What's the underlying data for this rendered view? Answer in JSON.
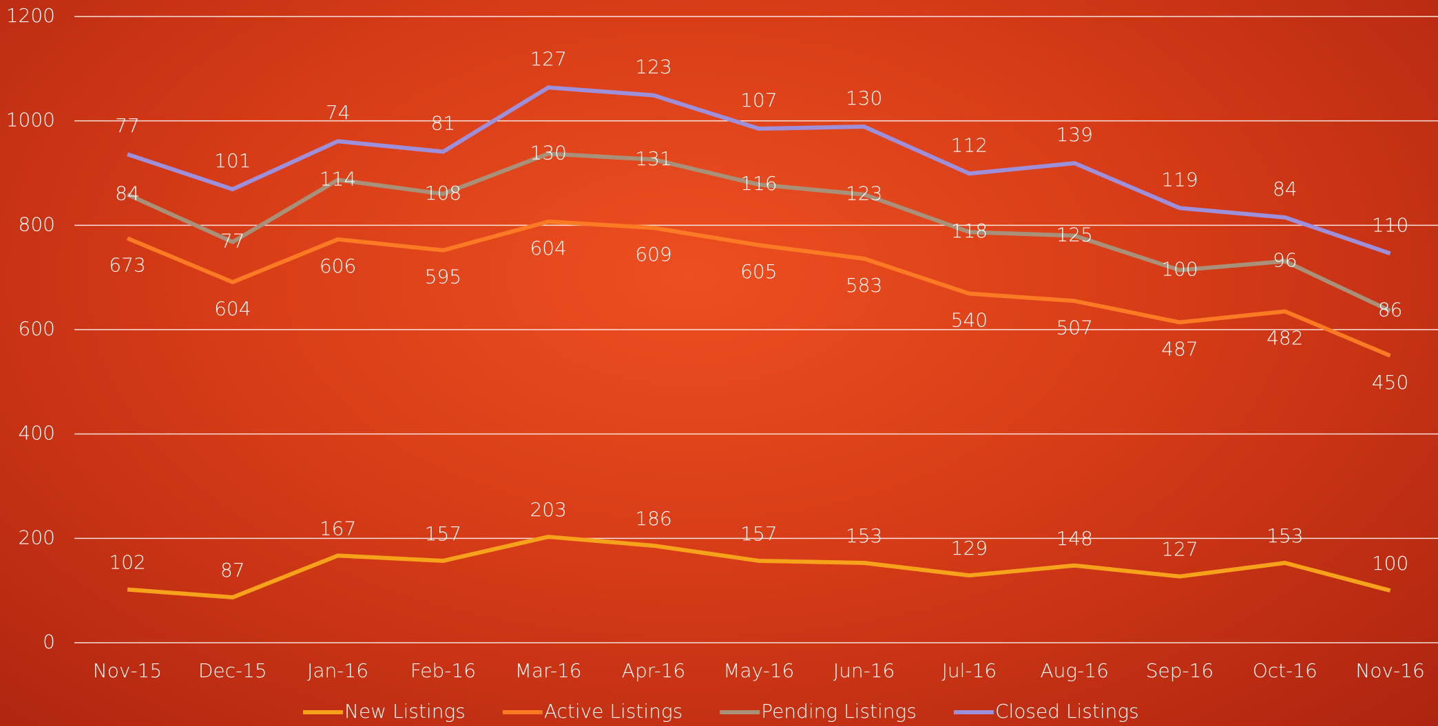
{
  "chart_data": {
    "type": "line",
    "stacked": true,
    "categories": [
      "Nov-15",
      "Dec-15",
      "Jan-16",
      "Feb-16",
      "Mar-16",
      "Apr-16",
      "May-16",
      "Jun-16",
      "Jul-16",
      "Aug-16",
      "Sep-16",
      "Oct-16",
      "Nov-16"
    ],
    "series": [
      {
        "name": "New Listings",
        "color": "#f7a21b",
        "values": [
          102,
          87,
          167,
          157,
          203,
          186,
          157,
          153,
          129,
          148,
          127,
          153,
          100
        ]
      },
      {
        "name": "Active Listings",
        "color": "#fb7a24",
        "values": [
          673,
          604,
          606,
          595,
          604,
          609,
          605,
          583,
          540,
          507,
          487,
          482,
          450
        ]
      },
      {
        "name": "Pending Listings",
        "color": "#a99079",
        "values": [
          84,
          77,
          114,
          108,
          130,
          131,
          116,
          123,
          118,
          125,
          100,
          96,
          86
        ]
      },
      {
        "name": "Closed Listings",
        "color": "#9d8fda",
        "values": [
          77,
          101,
          74,
          81,
          127,
          123,
          107,
          130,
          112,
          139,
          119,
          84,
          110
        ]
      }
    ],
    "ylim": [
      0,
      1200
    ],
    "yticks": [
      0,
      200,
      400,
      600,
      800,
      1000,
      1200
    ],
    "grid": true,
    "legend": "bottom"
  }
}
